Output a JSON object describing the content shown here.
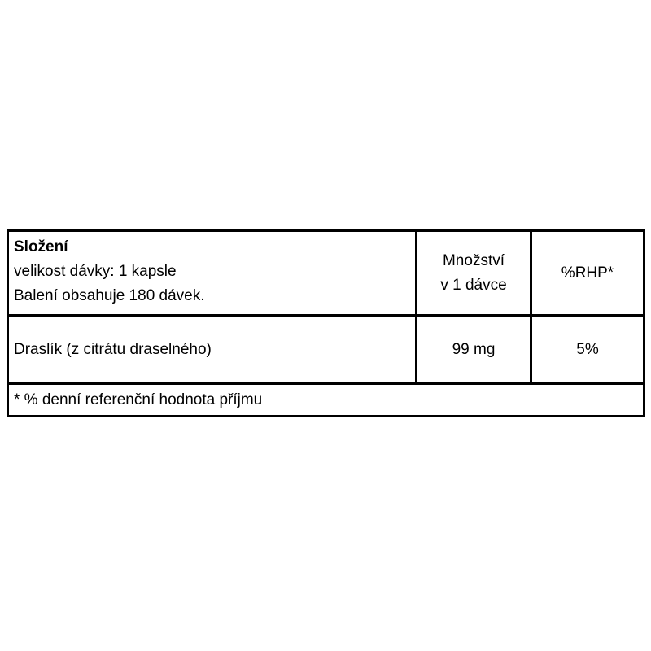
{
  "page": {
    "background": "#ffffff",
    "text_color": "#000000",
    "border_color": "#000000"
  },
  "table": {
    "header": {
      "title": "Složení",
      "serving_size": "velikost dávky: 1 kapsle",
      "servings_per_container": "Balení obsahuje 180 dávek.",
      "amount_col_line1": "Množství",
      "amount_col_line2": "v 1 dávce",
      "rhp_col": "%RHP*"
    },
    "rows": [
      {
        "name": "Draslík (z citrátu draselného)",
        "amount": "99 mg",
        "rhp": "5%"
      }
    ],
    "footnote": "* % denní referenční hodnota příjmu"
  }
}
